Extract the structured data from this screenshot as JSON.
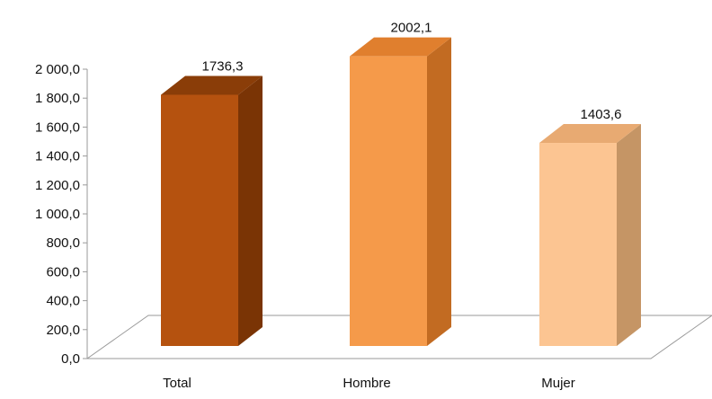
{
  "chart_data": {
    "type": "bar",
    "title": "",
    "xlabel": "",
    "ylabel": "",
    "categories": [
      "Total",
      "Hombre",
      "Mujer"
    ],
    "values": [
      1736.3,
      2002.1,
      1403.6
    ],
    "value_labels": [
      "1736,3",
      "2002,1",
      "1403,6"
    ],
    "ylim": [
      0,
      2000
    ],
    "yticks": [
      0,
      200,
      400,
      600,
      800,
      1000,
      1200,
      1400,
      1600,
      1800,
      2000
    ],
    "ytick_labels": [
      "0,0",
      "200,0",
      "400,0",
      "600,0",
      "800,0",
      "1 000,0",
      "1 200,0",
      "1 400,0",
      "1 600,0",
      "1 800,0",
      "2 000,0"
    ],
    "grid": false,
    "legend": "none",
    "bar_colors": [
      {
        "front": "#b5520f",
        "side": "#7a3405",
        "top": "#8a3d08"
      },
      {
        "front": "#f59a4a",
        "side": "#c26b22",
        "top": "#e07f2e"
      },
      {
        "front": "#fcc592",
        "side": "#c59565",
        "top": "#e8aa72"
      }
    ]
  }
}
